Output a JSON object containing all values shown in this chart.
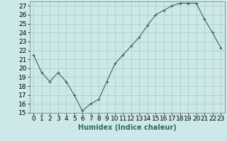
{
  "x": [
    0,
    1,
    2,
    3,
    4,
    5,
    6,
    7,
    8,
    9,
    10,
    11,
    12,
    13,
    14,
    15,
    16,
    17,
    18,
    19,
    20,
    21,
    22,
    23
  ],
  "y": [
    21.5,
    19.5,
    18.5,
    19.5,
    18.5,
    17.0,
    15.2,
    16.0,
    16.5,
    18.5,
    20.5,
    21.5,
    22.5,
    23.5,
    24.8,
    26.0,
    26.5,
    27.0,
    27.3,
    27.3,
    27.3,
    25.5,
    24.0,
    22.3
  ],
  "line_color": "#2e6b5e",
  "marker": "+",
  "bg_color": "#cce8e8",
  "grid_color": "#aacccc",
  "xlabel": "Humidex (Indice chaleur)",
  "ylim": [
    15,
    27.5
  ],
  "xlim": [
    -0.5,
    23.5
  ],
  "yticks": [
    15,
    16,
    17,
    18,
    19,
    20,
    21,
    22,
    23,
    24,
    25,
    26,
    27
  ],
  "xticks": [
    0,
    1,
    2,
    3,
    4,
    5,
    6,
    7,
    8,
    9,
    10,
    11,
    12,
    13,
    14,
    15,
    16,
    17,
    18,
    19,
    20,
    21,
    22,
    23
  ],
  "xlabel_fontsize": 7,
  "tick_fontsize": 6.5
}
